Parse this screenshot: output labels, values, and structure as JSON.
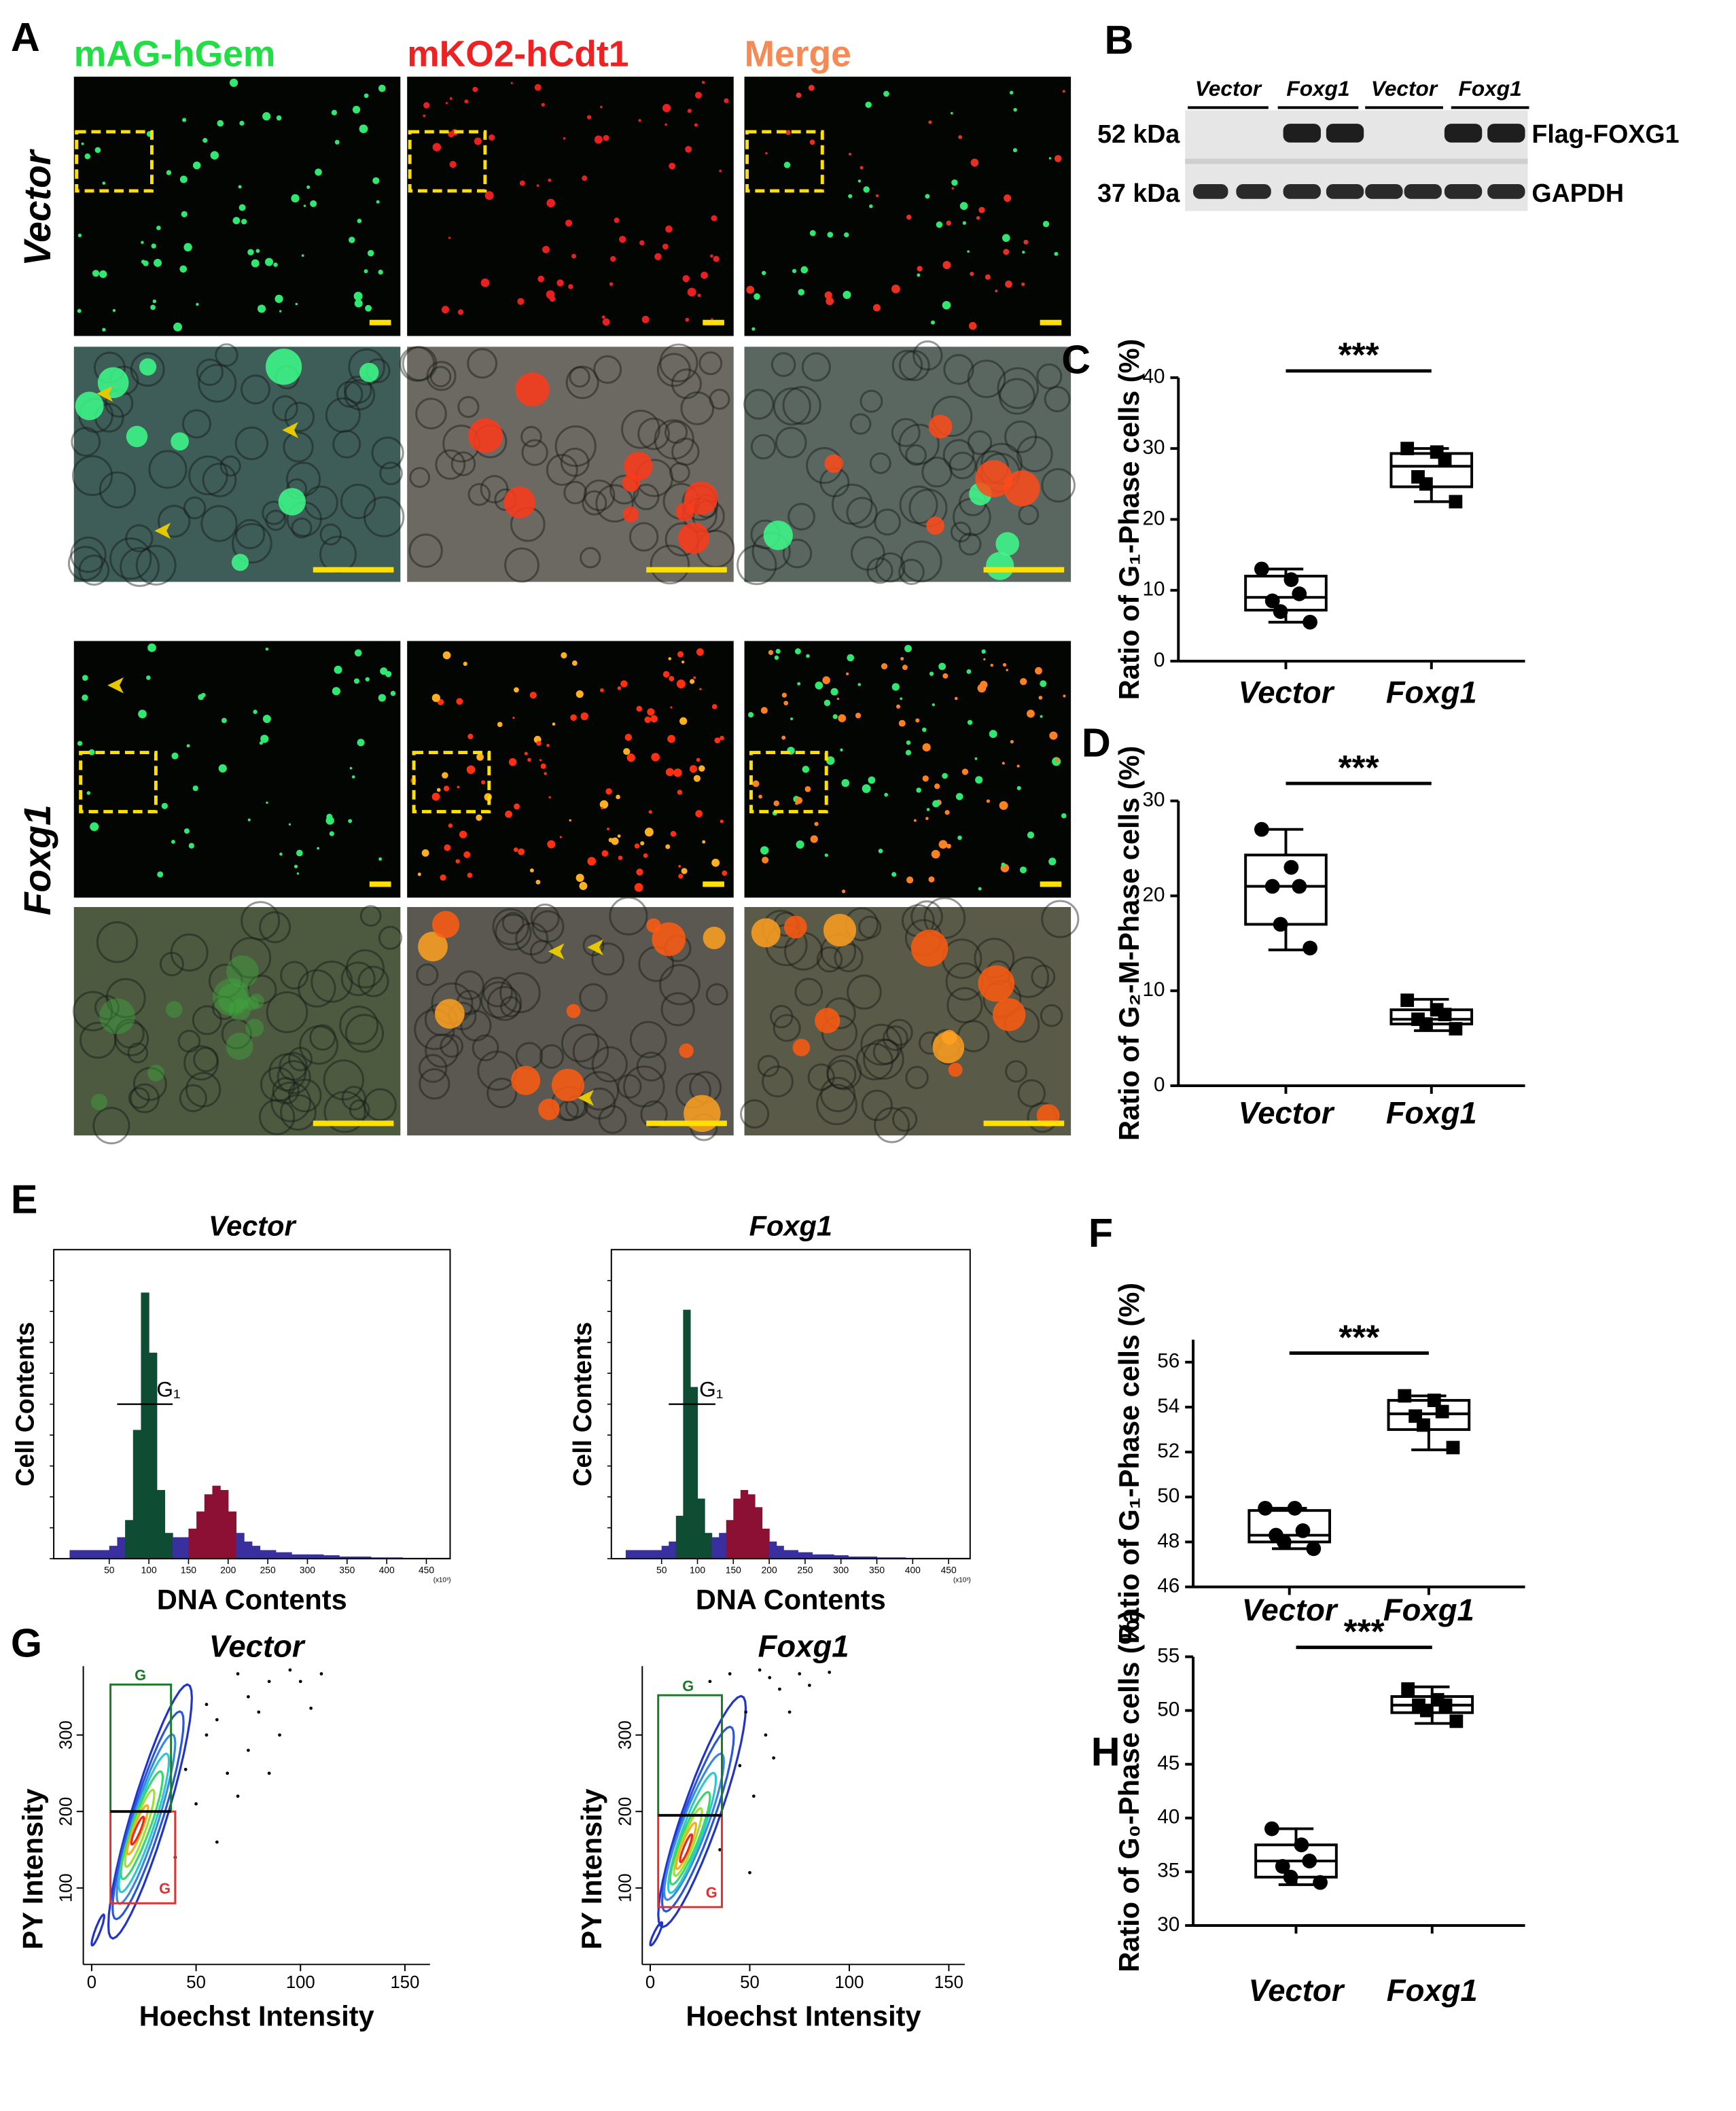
{
  "panels": {
    "A": {
      "label": "A",
      "channels": [
        "mAG-hGem",
        "mKO2-hCdt1",
        "Merge"
      ],
      "channel_colors": [
        "#22dd44",
        "#ee2222",
        "#f58a55"
      ],
      "conditions": [
        "Vector",
        "Foxg1"
      ]
    },
    "B": {
      "label": "B",
      "lanes": [
        "Vector",
        "Foxg1",
        "Vector",
        "Foxg1"
      ],
      "markers": [
        "52 kDa",
        "37 kDa"
      ],
      "proteins": [
        "Flag-FOXG1",
        "GAPDH"
      ]
    },
    "E": {
      "label": "E"
    },
    "G": {
      "label": "G"
    }
  },
  "chart_data": [
    {
      "type": "box",
      "panel": "C",
      "ylabel": "Ratio of G₁-Phase cells (%)",
      "categories": [
        "Vector",
        "Foxg1"
      ],
      "annotation": "***",
      "ylim": [
        0,
        40
      ],
      "yticks": [
        0,
        10,
        20,
        30,
        40
      ],
      "boxes": [
        {
          "min": 5.5,
          "q1": 7.2,
          "median": 9,
          "q3": 12,
          "max": 13,
          "points": [
            13,
            11.5,
            9.5,
            8.5,
            7,
            5.5
          ],
          "marker": "circle"
        },
        {
          "min": 22.5,
          "q1": 24.6,
          "median": 27.5,
          "q3": 29.3,
          "max": 30,
          "points": [
            30,
            29.5,
            28.5,
            26,
            25,
            22.5
          ],
          "marker": "square"
        }
      ]
    },
    {
      "type": "box",
      "panel": "D",
      "ylabel": "Ratio of G₂-M-Phase cells (%)",
      "categories": [
        "Vector",
        "Foxg1"
      ],
      "annotation": "***",
      "ylim": [
        0,
        30
      ],
      "yticks": [
        0,
        10,
        20,
        30
      ],
      "boxes": [
        {
          "min": 14.3,
          "q1": 17,
          "median": 21,
          "q3": 24.3,
          "max": 27,
          "points": [
            27,
            23,
            21,
            21,
            17,
            14.5
          ],
          "marker": "circle"
        },
        {
          "min": 5.8,
          "q1": 6.5,
          "median": 7,
          "q3": 8,
          "max": 9.1,
          "points": [
            9,
            8,
            7.5,
            7,
            6.5,
            6
          ],
          "marker": "square"
        }
      ]
    },
    {
      "type": "box",
      "panel": "F",
      "ylabel": "Ratio of G₁-Phase cells (%)",
      "categories": [
        "Vector",
        "Foxg1"
      ],
      "annotation": "***",
      "ylim": [
        46,
        57
      ],
      "yticks": [
        46,
        48,
        50,
        52,
        54,
        56
      ],
      "boxes": [
        {
          "min": 47.7,
          "q1": 48,
          "median": 48.3,
          "q3": 49.4,
          "max": 49.5,
          "points": [
            49.5,
            49.5,
            48.5,
            48.3,
            48,
            47.7
          ],
          "marker": "circle"
        },
        {
          "min": 52.1,
          "q1": 53,
          "median": 53.7,
          "q3": 54.3,
          "max": 54.5,
          "points": [
            54.5,
            54.3,
            53.8,
            53.6,
            53.2,
            52.2
          ],
          "marker": "square"
        }
      ]
    },
    {
      "type": "box",
      "panel": "H",
      "ylabel": "Ratio of G₀-Phase cells (%)",
      "categories": [
        "Vector",
        "Foxg1"
      ],
      "annotation": "***",
      "ylim": [
        30,
        55
      ],
      "yticks": [
        30,
        35,
        40,
        45,
        50,
        55
      ],
      "boxes": [
        {
          "min": 33.8,
          "q1": 34.5,
          "median": 36,
          "q3": 37.5,
          "max": 39,
          "points": [
            39,
            37.5,
            36,
            35.5,
            34.5,
            34
          ],
          "marker": "circle"
        },
        {
          "min": 48.8,
          "q1": 49.8,
          "median": 50.5,
          "q3": 51.3,
          "max": 52.2,
          "points": [
            52,
            51,
            50.5,
            50.5,
            50,
            49
          ],
          "marker": "square"
        }
      ]
    },
    {
      "type": "histogram",
      "title": "Vector",
      "xlabel": "DNA Contents",
      "ylabel": "Cell Contents",
      "x_unit": "(x10³)",
      "bins": [
        0,
        10,
        20,
        30,
        40,
        50,
        60,
        70,
        80,
        90,
        100,
        110,
        120,
        130,
        140,
        150,
        160,
        170,
        180,
        190,
        200,
        210,
        220,
        230,
        240,
        250,
        260,
        270,
        280,
        290,
        300,
        310,
        320,
        330,
        340,
        350,
        360,
        370,
        380,
        390,
        400,
        410,
        420,
        430,
        440,
        450,
        460,
        470,
        480
      ],
      "counts": [
        2,
        2,
        2,
        2,
        2,
        3,
        5,
        9,
        30,
        62,
        48,
        16,
        6,
        5,
        5,
        7,
        11,
        15,
        17,
        16,
        11,
        6,
        4,
        3,
        2,
        2,
        1.5,
        1.5,
        1,
        1,
        1,
        1,
        0.8,
        0.8,
        0.5,
        0.5,
        0.5,
        0.5,
        0.3,
        0.3,
        0.3,
        0.3,
        0.2,
        0.2,
        0.2,
        0.2,
        0.2,
        0.2
      ],
      "color": "#3a2f9e",
      "segments": [
        {
          "range": [
            70,
            130
          ],
          "color": "#0e4d33"
        },
        {
          "range": [
            150,
            210
          ],
          "color": "#8c0f34"
        }
      ],
      "gate": {
        "label": "G₁",
        "range": [
          60,
          130
        ],
        "level": 36
      },
      "xlim": [
        -20,
        480
      ],
      "xticks": [
        50,
        100,
        150,
        200,
        250,
        300,
        350,
        400,
        450
      ],
      "ylim": [
        0,
        72
      ]
    },
    {
      "type": "histogram",
      "title": "Foxg1",
      "xlabel": "DNA Contents",
      "ylabel": "Cell Contents",
      "x_unit": "(x10³)",
      "bins": [
        0,
        10,
        20,
        30,
        40,
        50,
        60,
        70,
        80,
        90,
        100,
        110,
        120,
        130,
        140,
        150,
        160,
        170,
        180,
        190,
        200,
        210,
        220,
        230,
        240,
        250,
        260,
        270,
        280,
        290,
        300,
        310,
        320,
        330,
        340,
        350,
        360,
        370,
        380,
        390,
        400,
        410,
        420,
        430,
        440,
        450,
        460,
        470,
        480
      ],
      "counts": [
        2,
        2,
        2,
        2,
        2,
        3,
        4,
        10,
        58,
        40,
        14,
        6,
        5,
        6,
        9,
        14,
        16,
        15,
        12,
        7,
        4,
        3,
        2,
        2,
        1.5,
        1.5,
        1,
        1,
        1,
        0.8,
        0.8,
        0.5,
        0.5,
        0.5,
        0.5,
        0.3,
        0.3,
        0.3,
        0.3,
        0.2,
        0.2,
        0.2,
        0.2,
        0.2,
        0.2,
        0.2,
        0.2,
        0.2
      ],
      "color": "#3a2f9e",
      "segments": [
        {
          "range": [
            70,
            120
          ],
          "color": "#0e4d33"
        },
        {
          "range": [
            140,
            200
          ],
          "color": "#8c0f34"
        }
      ],
      "gate": {
        "label": "G₁",
        "range": [
          60,
          125
        ],
        "level": 36
      },
      "xlim": [
        -20,
        480
      ],
      "xticks": [
        50,
        100,
        150,
        200,
        250,
        300,
        350,
        400,
        450
      ],
      "ylim": [
        0,
        72
      ]
    },
    {
      "type": "contour",
      "title": "Vector",
      "xlabel": "Hoechst Intensity",
      "ylabel": "PY Intensity",
      "xlim": [
        -4,
        162
      ],
      "xticks": [
        0,
        50,
        100,
        150
      ],
      "ylim": [
        0,
        390
      ],
      "yticks": [
        100,
        200,
        300
      ],
      "gates": [
        {
          "label": "G",
          "color": "#1a7a2a",
          "x": [
            9,
            38
          ],
          "y": [
            200,
            366
          ]
        },
        {
          "label": "G",
          "color": "#e03030",
          "x": [
            9,
            40
          ],
          "y": [
            80,
            200
          ]
        }
      ],
      "contours": {
        "x": [
          28,
          27,
          26,
          25,
          24,
          23,
          22,
          22,
          3
        ],
        "y": [
          200,
          195,
          190,
          185,
          182,
          178,
          176,
          175,
          45
        ],
        "rx": [
          20,
          17,
          14,
          12,
          10,
          7,
          5,
          3,
          3
        ],
        "ry": [
          165,
          135,
          110,
          90,
          70,
          50,
          32,
          18,
          20
        ],
        "colors": [
          "#2233cc",
          "#2a55dd",
          "#3a88e6",
          "#2cc8d0",
          "#36d86a",
          "#9ee030",
          "#f0b020",
          "#e82a1a",
          "#2233cc"
        ]
      },
      "points": {
        "x": [
          70,
          85,
          95,
          60,
          55,
          75,
          100,
          45,
          65,
          80,
          90,
          50,
          110,
          60,
          40,
          70,
          85,
          105,
          55,
          75
        ],
        "y": [
          380,
          370,
          385,
          320,
          300,
          280,
          370,
          255,
          250,
          330,
          300,
          210,
          380,
          160,
          140,
          220,
          250,
          335,
          340,
          350
        ]
      }
    },
    {
      "type": "contour",
      "title": "Foxg1",
      "xlabel": "Hoechst Intensity",
      "ylabel": "PY Intensity",
      "xlim": [
        -4,
        158
      ],
      "xticks": [
        0,
        50,
        100,
        150
      ],
      "ylim": [
        0,
        390
      ],
      "yticks": [
        100,
        200,
        300
      ],
      "gates": [
        {
          "label": "G",
          "color": "#1a7a2a",
          "x": [
            4,
            36
          ],
          "y": [
            195,
            352
          ]
        },
        {
          "label": "G",
          "color": "#e03030",
          "x": [
            4,
            36
          ],
          "y": [
            75,
            195
          ]
        }
      ],
      "contours": {
        "x": [
          26,
          24,
          22,
          21,
          20,
          19,
          18,
          18,
          3
        ],
        "y": [
          200,
          190,
          180,
          172,
          165,
          160,
          155,
          152,
          40
        ],
        "rx": [
          22,
          18,
          15,
          12,
          10,
          7,
          5,
          3,
          3
        ],
        "ry": [
          150,
          120,
          95,
          78,
          60,
          44,
          30,
          18,
          15
        ],
        "colors": [
          "#2233cc",
          "#2a55dd",
          "#3a88e6",
          "#2cc8d0",
          "#36d86a",
          "#9ee030",
          "#f0b020",
          "#e82a1a",
          "#2233cc"
        ]
      },
      "points": {
        "x": [
          30,
          40,
          55,
          60,
          48,
          65,
          75,
          45,
          52,
          70,
          80,
          35,
          58,
          62,
          50,
          90
        ],
        "y": [
          370,
          380,
          385,
          375,
          330,
          360,
          380,
          260,
          220,
          330,
          365,
          150,
          300,
          270,
          120,
          382
        ]
      }
    }
  ]
}
